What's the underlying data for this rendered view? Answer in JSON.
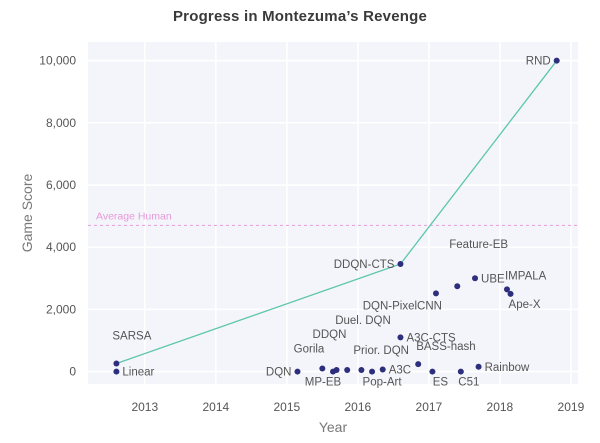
{
  "chart_data": {
    "type": "scatter",
    "title": "Progress in Montezuma’s Revenge",
    "xlabel": "Year",
    "ylabel": "Game Score",
    "xlim": [
      2012.2,
      2019.1
    ],
    "ylim": [
      -400,
      10600
    ],
    "x_ticks": [
      2013,
      2014,
      2015,
      2016,
      2017,
      2018,
      2019
    ],
    "x_tick_labels": [
      "2013",
      "2014",
      "2015",
      "2016",
      "2017",
      "2018",
      "2019"
    ],
    "y_ticks": [
      0,
      2000,
      4000,
      6000,
      8000,
      10000
    ],
    "y_tick_labels": [
      "0",
      "2,000",
      "4,000",
      "6,000",
      "8,000",
      "10,000"
    ],
    "grid": true,
    "reference_line": {
      "label": "Average Human",
      "value": 4700,
      "color": "#e59ad8"
    },
    "frontier_line": {
      "color": "#5cc6ad",
      "points": [
        "SARSA",
        "DDQN-CTS",
        "RND"
      ]
    },
    "point_color": "#2d2e7c",
    "points": [
      {
        "name": "SARSA",
        "x": 2012.6,
        "y": 260,
        "label_pos": "above"
      },
      {
        "name": "Linear",
        "x": 2012.6,
        "y": 0,
        "label_pos": "right"
      },
      {
        "name": "DQN",
        "x": 2015.15,
        "y": 0,
        "label_pos": "left"
      },
      {
        "name": "Gorila",
        "x": 2015.5,
        "y": 100,
        "label_pos": "above-left"
      },
      {
        "name": "MP-EB",
        "x": 2015.65,
        "y": 0,
        "label_pos": "below"
      },
      {
        "name": "DDQN",
        "x": 2015.7,
        "y": 50,
        "label_pos": "above-far"
      },
      {
        "name": "Duel. DQN",
        "x": 2015.85,
        "y": 50,
        "label_pos": "above-far"
      },
      {
        "name": "Prior. DQN",
        "x": 2016.05,
        "y": 50,
        "label_pos": "above-right"
      },
      {
        "name": "Pop-Art",
        "x": 2016.2,
        "y": 0,
        "label_pos": "below"
      },
      {
        "name": "A3C",
        "x": 2016.35,
        "y": 67,
        "label_pos": "right"
      },
      {
        "name": "A3C-CTS",
        "x": 2016.6,
        "y": 1100,
        "label_pos": "right"
      },
      {
        "name": "DDQN-CTS",
        "x": 2016.6,
        "y": 3459,
        "label_pos": "left"
      },
      {
        "name": "BASS-hash",
        "x": 2016.85,
        "y": 238,
        "label_pos": "above-right"
      },
      {
        "name": "ES",
        "x": 2017.05,
        "y": 0,
        "label_pos": "below"
      },
      {
        "name": "DQN-PixelCNN",
        "x": 2017.1,
        "y": 2514,
        "label_pos": "below-left"
      },
      {
        "name": "Feature-EB",
        "x": 2017.4,
        "y": 2745,
        "label_pos": "above-far"
      },
      {
        "name": "C51",
        "x": 2017.45,
        "y": 0,
        "label_pos": "below"
      },
      {
        "name": "UBE",
        "x": 2017.65,
        "y": 3000,
        "label_pos": "right"
      },
      {
        "name": "Rainbow",
        "x": 2017.7,
        "y": 154,
        "label_pos": "right"
      },
      {
        "name": "IMPALA",
        "x": 2018.1,
        "y": 2643,
        "label_pos": "above"
      },
      {
        "name": "Ape-X",
        "x": 2018.15,
        "y": 2500,
        "label_pos": "below"
      },
      {
        "name": "RND",
        "x": 2018.8,
        "y": 10000,
        "label_pos": "left"
      }
    ]
  }
}
